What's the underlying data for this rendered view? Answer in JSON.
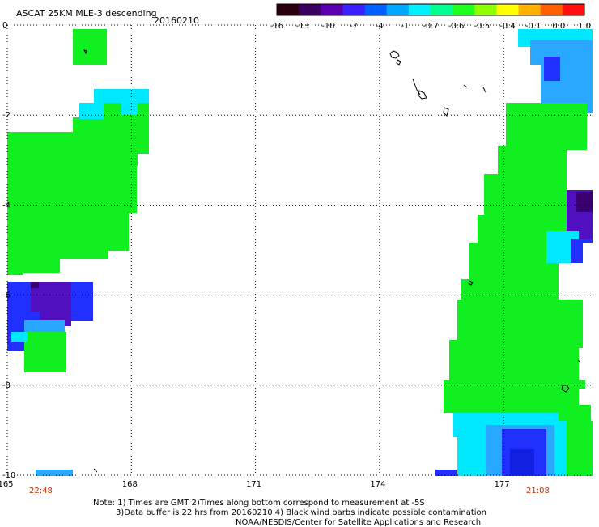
{
  "header": {
    "title": "ASCAT 25KM MLE-3 descending",
    "date": "20160210"
  },
  "colorbar": {
    "ticks": [
      "-16",
      "-13",
      "-10",
      "-7",
      "-4",
      "-1",
      "-0.7",
      "-0.6",
      "-0.5",
      "-0.4",
      "-0.1",
      "0.0",
      "1.0"
    ],
    "colors": [
      "#2a0010",
      "#3a0060",
      "#5a00b0",
      "#3a20ff",
      "#0060ff",
      "#00a8ff",
      "#00f0ff",
      "#00ff90",
      "#20ff20",
      "#90ff00",
      "#ffff00",
      "#ffb000",
      "#ff6000",
      "#ff1010"
    ]
  },
  "map": {
    "lat_labels": [
      "0",
      "-2",
      "-4",
      "-6",
      "-8",
      "-10"
    ],
    "lon_labels": [
      "165",
      "168",
      "171",
      "174",
      "177"
    ],
    "colors": {
      "green": "#10f020",
      "cyan": "#00e8ff",
      "sky": "#28a8ff",
      "blue": "#2030ff",
      "purple": "#5010c0",
      "darkpurple": "#3a0070"
    }
  },
  "time_labels": {
    "left": "22:48",
    "right": "21:08",
    "color": "#c03000"
  },
  "notes": {
    "line1": "Note: 1) Times are GMT 2)Times along bottom correspond to measurement at -5S",
    "line2": "3)Data buffer is 22 hrs from 20160210 4) Black wind barbs indicate possible contamination",
    "line3": "NOAA/NESDIS/Center for Satellite Applications and Research"
  }
}
